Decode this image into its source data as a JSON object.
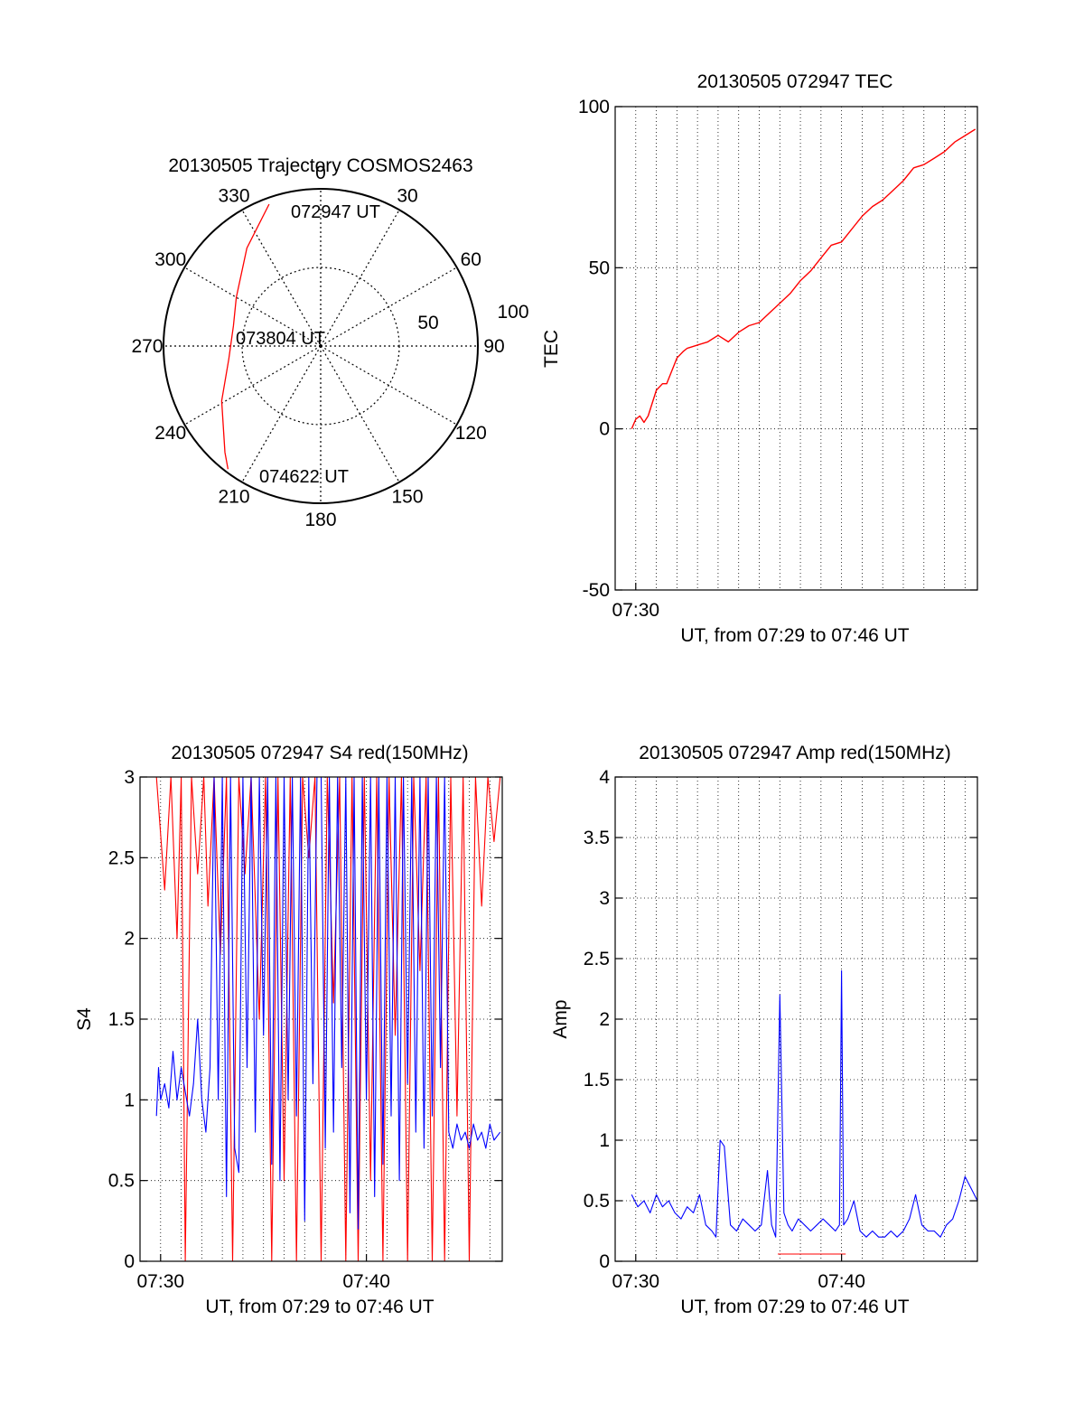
{
  "colors": {
    "red": "#ff0000",
    "blue": "#0000ff",
    "axis": "#000000",
    "grid": "#000000"
  },
  "chart_data": [
    {
      "type": "polar",
      "title": "20130505 Trajectory COSMOS2463",
      "azimuth_labels": [
        "0",
        "30",
        "60",
        "90",
        "120",
        "150",
        "180",
        "210",
        "240",
        "270",
        "300",
        "330"
      ],
      "radial_labels": [
        "50",
        "100"
      ],
      "radial_range": [
        0,
        100
      ],
      "annotations": {
        "start": "072947 UT",
        "mid": "073804 UT",
        "end": "074622 UT"
      },
      "trajectory": [
        {
          "az": 340,
          "r": 96
        },
        {
          "az": 323,
          "r": 78
        },
        {
          "az": 300,
          "r": 62
        },
        {
          "az": 283,
          "r": 57
        },
        {
          "az": 262,
          "r": 59
        },
        {
          "az": 241,
          "r": 72
        },
        {
          "az": 222,
          "r": 91
        },
        {
          "az": 217,
          "r": 98
        }
      ]
    },
    {
      "type": "line",
      "title": "20130505 072947 TEC",
      "ylabel": "TEC",
      "xlabel": "UT, from 07:29 to 07:46 UT",
      "xlim": [
        29.0,
        46.6
      ],
      "ylim": [
        -50,
        100
      ],
      "yticks": [
        "-50",
        "0",
        "50",
        "100"
      ],
      "xticks": [
        {
          "at": 30,
          "label": "07:30"
        }
      ],
      "series": [
        {
          "name": "TEC",
          "x": [
            29.8,
            30.0,
            30.2,
            30.4,
            30.6,
            31.0,
            31.3,
            31.5,
            32.0,
            32.3,
            32.5,
            33.0,
            33.5,
            34.0,
            34.5,
            35.0,
            35.5,
            36.0,
            36.5,
            37.0,
            37.5,
            38.0,
            38.5,
            39.0,
            39.5,
            40.0,
            40.5,
            41.0,
            41.5,
            42.0,
            42.5,
            43.0,
            43.5,
            44.0,
            44.5,
            45.0,
            45.5,
            46.0,
            46.5
          ],
          "values": [
            0,
            3,
            4,
            2,
            4,
            12,
            14,
            14,
            22,
            24,
            25,
            26,
            27,
            29,
            27,
            30,
            32,
            33,
            36,
            39,
            42,
            46,
            49,
            53,
            57,
            58,
            62,
            66,
            69,
            71,
            74,
            77,
            81,
            82,
            84,
            86,
            89,
            91,
            93
          ]
        }
      ]
    },
    {
      "type": "line",
      "title": "20130505 072947 S4 red(150MHz)",
      "ylabel": "S4",
      "xlabel": "UT, from 07:29 to 07:46 UT",
      "xlim": [
        29.0,
        46.6
      ],
      "ylim": [
        0,
        3
      ],
      "yticks": [
        "0",
        "0.5",
        "1",
        "1.5",
        "2",
        "2.5",
        "3"
      ],
      "xticks": [
        {
          "at": 30,
          "label": "07:30"
        },
        {
          "at": 40,
          "label": "07:40"
        }
      ],
      "series": [
        {
          "name": "S4 red (150MHz)",
          "color": "#ff0000",
          "x": [
            29.8,
            30.2,
            30.5,
            30.8,
            31.0,
            31.2,
            31.5,
            31.8,
            32.1,
            32.3,
            32.6,
            32.9,
            33.2,
            33.5,
            33.8,
            34.1,
            34.4,
            34.8,
            35.1,
            35.4,
            35.7,
            36.0,
            36.3,
            36.6,
            36.9,
            37.2,
            37.5,
            37.8,
            38.1,
            38.4,
            38.7,
            39.0,
            39.3,
            39.6,
            39.9,
            40.2,
            40.5,
            40.8,
            41.1,
            41.4,
            41.7,
            42.0,
            42.3,
            42.6,
            42.9,
            43.2,
            43.5,
            43.8,
            44.1,
            44.4,
            44.7,
            45.0,
            45.3,
            45.6,
            45.9,
            46.2,
            46.5
          ],
          "values": [
            3,
            2.3,
            3,
            2.0,
            3,
            0,
            3,
            2.4,
            3,
            2.2,
            3,
            1.9,
            3,
            0,
            3,
            2.4,
            3,
            1.5,
            3,
            0,
            3,
            0.5,
            3,
            0,
            3,
            2.5,
            3,
            0,
            3,
            1.6,
            3,
            0,
            3,
            0,
            3,
            0.5,
            3,
            0,
            3,
            1.4,
            3,
            0,
            3,
            1.8,
            3,
            0,
            3,
            0,
            3,
            0.9,
            3,
            0,
            3,
            2.2,
            3,
            2.6,
            3
          ]
        },
        {
          "name": "S4 blue",
          "color": "#0000ff",
          "x": [
            29.8,
            29.9,
            30.0,
            30.2,
            30.4,
            30.6,
            30.8,
            31.0,
            31.2,
            31.4,
            31.6,
            31.8,
            32.0,
            32.2,
            32.4,
            32.6,
            32.8,
            33.0,
            33.2,
            33.4,
            33.6,
            33.8,
            34.0,
            34.2,
            34.4,
            34.6,
            34.8,
            35.0,
            35.2,
            35.4,
            35.6,
            35.8,
            36.0,
            36.2,
            36.4,
            36.6,
            36.8,
            37.0,
            37.2,
            37.4,
            37.6,
            37.8,
            38.0,
            38.2,
            38.4,
            38.6,
            38.8,
            39.0,
            39.2,
            39.4,
            39.6,
            39.8,
            40.0,
            40.2,
            40.4,
            40.6,
            40.8,
            41.0,
            41.2,
            41.4,
            41.6,
            41.8,
            42.0,
            42.2,
            42.4,
            42.6,
            42.8,
            43.0,
            43.2,
            43.4,
            43.6,
            43.8,
            44.0,
            44.2,
            44.4,
            44.6,
            44.8,
            45.0,
            45.2,
            45.4,
            45.6,
            45.8,
            46.0,
            46.2,
            46.5
          ],
          "values": [
            0.9,
            1.2,
            1.0,
            1.1,
            0.95,
            1.3,
            1.0,
            1.2,
            1.05,
            0.9,
            1.1,
            1.5,
            1.0,
            0.8,
            1.2,
            3,
            1.0,
            3,
            0.4,
            3,
            0.7,
            0.55,
            3,
            1.2,
            3,
            0.8,
            3,
            1.4,
            3,
            0.6,
            3,
            0.5,
            3,
            1.0,
            3,
            0.9,
            3,
            0.25,
            3,
            1.1,
            3,
            3,
            0.7,
            3,
            0.8,
            3,
            1.2,
            3,
            0.3,
            3,
            0.2,
            3,
            1.0,
            3,
            0.4,
            3,
            0.6,
            3,
            0.9,
            3,
            0.5,
            3,
            1.1,
            3,
            0.8,
            3,
            0.7,
            3,
            0.9,
            3,
            1.2,
            3,
            0.8,
            0.7,
            0.85,
            0.75,
            0.8,
            0.7,
            0.85,
            0.75,
            0.8,
            0.7,
            0.85,
            0.75,
            0.8
          ]
        }
      ]
    },
    {
      "type": "line",
      "title": "20130505 072947 Amp red(150MHz)",
      "ylabel": "Amp",
      "xlabel": "UT, from 07:29 to 07:46 UT",
      "xlim": [
        29.0,
        46.6
      ],
      "ylim": [
        0,
        4
      ],
      "yticks": [
        "0",
        "0.5",
        "1",
        "1.5",
        "2",
        "2.5",
        "3",
        "3.5",
        "4"
      ],
      "xticks": [
        {
          "at": 30,
          "label": "07:30"
        },
        {
          "at": 40,
          "label": "07:40"
        }
      ],
      "series": [
        {
          "name": "Amp blue",
          "color": "#0000ff",
          "x": [
            29.8,
            30.1,
            30.4,
            30.7,
            31.0,
            31.3,
            31.6,
            31.9,
            32.2,
            32.5,
            32.8,
            33.1,
            33.4,
            33.7,
            33.9,
            34.1,
            34.3,
            34.6,
            34.9,
            35.2,
            35.5,
            35.8,
            36.1,
            36.4,
            36.6,
            36.8,
            37.0,
            37.2,
            37.4,
            37.6,
            37.9,
            38.2,
            38.5,
            38.8,
            39.1,
            39.4,
            39.7,
            39.9,
            40.0,
            40.1,
            40.3,
            40.6,
            40.9,
            41.2,
            41.5,
            41.8,
            42.1,
            42.4,
            42.7,
            43.0,
            43.3,
            43.6,
            43.9,
            44.2,
            44.5,
            44.8,
            45.1,
            45.4,
            45.7,
            46.0,
            46.3,
            46.6
          ],
          "values": [
            0.55,
            0.45,
            0.5,
            0.4,
            0.55,
            0.45,
            0.5,
            0.4,
            0.35,
            0.45,
            0.4,
            0.55,
            0.3,
            0.25,
            0.2,
            1.0,
            0.95,
            0.3,
            0.25,
            0.35,
            0.3,
            0.25,
            0.3,
            0.75,
            0.3,
            0.2,
            2.2,
            0.4,
            0.3,
            0.25,
            0.35,
            0.3,
            0.25,
            0.3,
            0.35,
            0.3,
            0.25,
            0.3,
            2.4,
            0.3,
            0.35,
            0.5,
            0.25,
            0.2,
            0.25,
            0.2,
            0.2,
            0.25,
            0.2,
            0.25,
            0.35,
            0.55,
            0.3,
            0.25,
            0.25,
            0.2,
            0.3,
            0.35,
            0.5,
            0.7,
            0.6,
            0.5
          ]
        },
        {
          "name": "Amp red",
          "color": "#ff0000",
          "x": [
            36.9,
            37.1,
            40.0,
            40.2
          ],
          "values": [
            0.06,
            0.06,
            0.06,
            0.06
          ]
        }
      ]
    }
  ]
}
